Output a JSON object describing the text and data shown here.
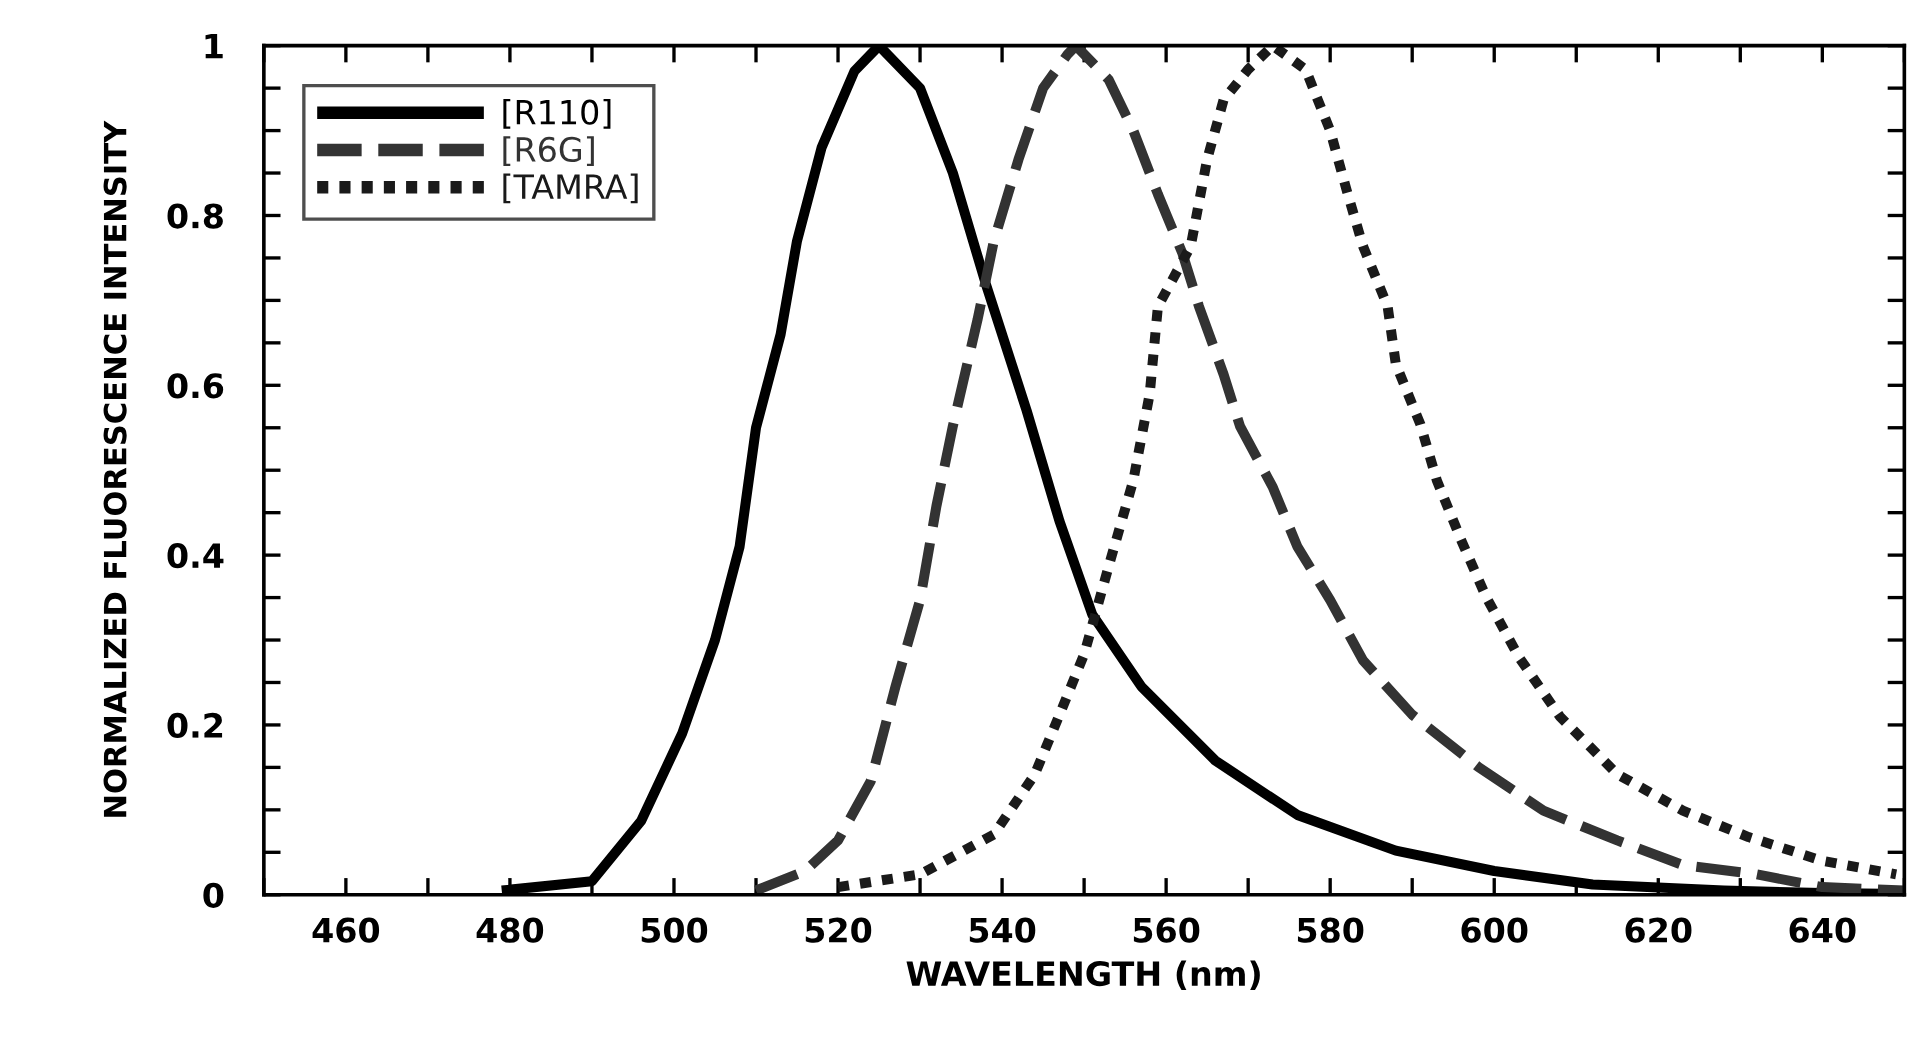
{
  "chart_data": {
    "type": "line",
    "xlabel": "WAVELENGTH (nm)",
    "ylabel": "NORMALIZED FLUORESCENCE INTENSITY",
    "xlim": [
      450,
      650
    ],
    "ylim": [
      0,
      1
    ],
    "xticks": [
      {
        "value": 450,
        "label": null
      },
      460,
      {
        "value": 470,
        "label": null
      },
      480,
      {
        "value": 490,
        "label": null
      },
      500,
      {
        "value": 510,
        "label": null
      },
      520,
      {
        "value": 530,
        "label": null
      },
      540,
      {
        "value": 550,
        "label": null
      },
      560,
      {
        "value": 570,
        "label": null
      },
      580,
      {
        "value": 590,
        "label": null
      },
      600,
      {
        "value": 610,
        "label": null
      },
      620,
      {
        "value": 630,
        "label": null
      },
      640,
      {
        "value": 650,
        "label": null
      }
    ],
    "yticks": [
      0,
      {
        "value": 0.05,
        "label": null
      },
      {
        "value": 0.1,
        "label": null
      },
      {
        "value": 0.15,
        "label": null
      },
      0.2,
      {
        "value": 0.25,
        "label": null
      },
      {
        "value": 0.3,
        "label": null
      },
      {
        "value": 0.35,
        "label": null
      },
      0.4,
      {
        "value": 0.45,
        "label": null
      },
      {
        "value": 0.5,
        "label": null
      },
      {
        "value": 0.55,
        "label": null
      },
      0.6,
      {
        "value": 0.65,
        "label": null
      },
      {
        "value": 0.7,
        "label": null
      },
      {
        "value": 0.75,
        "label": null
      },
      0.8,
      {
        "value": 0.85,
        "label": null
      },
      {
        "value": 0.9,
        "label": null
      },
      {
        "value": 0.95,
        "label": null
      },
      1
    ],
    "grid": false,
    "legend": "top left",
    "marker": "none",
    "series": [
      {
        "name": "[R110]",
        "color": "#000000",
        "line_style": "solid",
        "x": [
          479,
          490,
          496,
          501,
          505,
          508,
          510,
          513,
          515,
          518,
          522,
          525,
          530,
          534,
          538,
          543,
          547,
          551,
          557,
          566,
          576,
          588,
          600,
          612,
          628,
          640,
          650
        ],
        "values": [
          0.005,
          0.016,
          0.087,
          0.19,
          0.3,
          0.41,
          0.55,
          0.66,
          0.77,
          0.88,
          0.97,
          1.0,
          0.95,
          0.85,
          0.72,
          0.57,
          0.44,
          0.33,
          0.245,
          0.158,
          0.094,
          0.052,
          0.028,
          0.012,
          0.005,
          0.002,
          0.001
        ]
      },
      {
        "name": "[R6G]",
        "color": "#333333",
        "line_style": "dashed",
        "x": [
          510,
          516,
          520,
          524,
          527,
          530,
          532,
          534,
          537,
          539,
          542,
          545,
          548,
          549,
          553,
          556,
          559,
          562,
          564,
          567,
          569,
          573,
          576,
          580,
          584,
          590,
          598,
          606,
          615,
          623,
          632,
          640,
          650
        ],
        "values": [
          0.005,
          0.028,
          0.064,
          0.134,
          0.245,
          0.347,
          0.458,
          0.552,
          0.677,
          0.77,
          0.866,
          0.95,
          0.99,
          1.0,
          0.96,
          0.9,
          0.825,
          0.755,
          0.693,
          0.613,
          0.552,
          0.48,
          0.41,
          0.347,
          0.276,
          0.212,
          0.151,
          0.099,
          0.064,
          0.035,
          0.024,
          0.009,
          0.005
        ]
      },
      {
        "name": "[TAMRA]",
        "color": "#1a1a1a",
        "line_style": "dotted",
        "x": [
          520,
          530,
          539,
          544,
          547,
          550,
          553,
          556,
          558,
          559,
          563,
          565,
          567,
          570,
          573,
          577,
          580,
          582,
          584,
          587,
          588,
          591,
          593,
          596,
          599,
          603,
          608,
          615,
          623,
          631,
          640,
          649
        ],
        "values": [
          0.009,
          0.024,
          0.071,
          0.142,
          0.212,
          0.283,
          0.387,
          0.488,
          0.59,
          0.693,
          0.764,
          0.866,
          0.936,
          0.972,
          1.0,
          0.972,
          0.9,
          0.83,
          0.764,
          0.693,
          0.625,
          0.554,
          0.488,
          0.417,
          0.351,
          0.28,
          0.21,
          0.142,
          0.099,
          0.068,
          0.04,
          0.024
        ]
      }
    ]
  }
}
